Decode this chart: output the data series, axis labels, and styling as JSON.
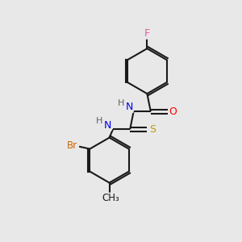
{
  "background_color": "#e8e8e8",
  "bond_color": "#1a1a1a",
  "atom_colors": {
    "F": "#e060a0",
    "O": "#ff0000",
    "N": "#0000ee",
    "S": "#b8a000",
    "Br": "#cc6600",
    "C": "#1a1a1a",
    "H": "#606060"
  },
  "figsize": [
    3.0,
    3.0
  ],
  "dpi": 100
}
